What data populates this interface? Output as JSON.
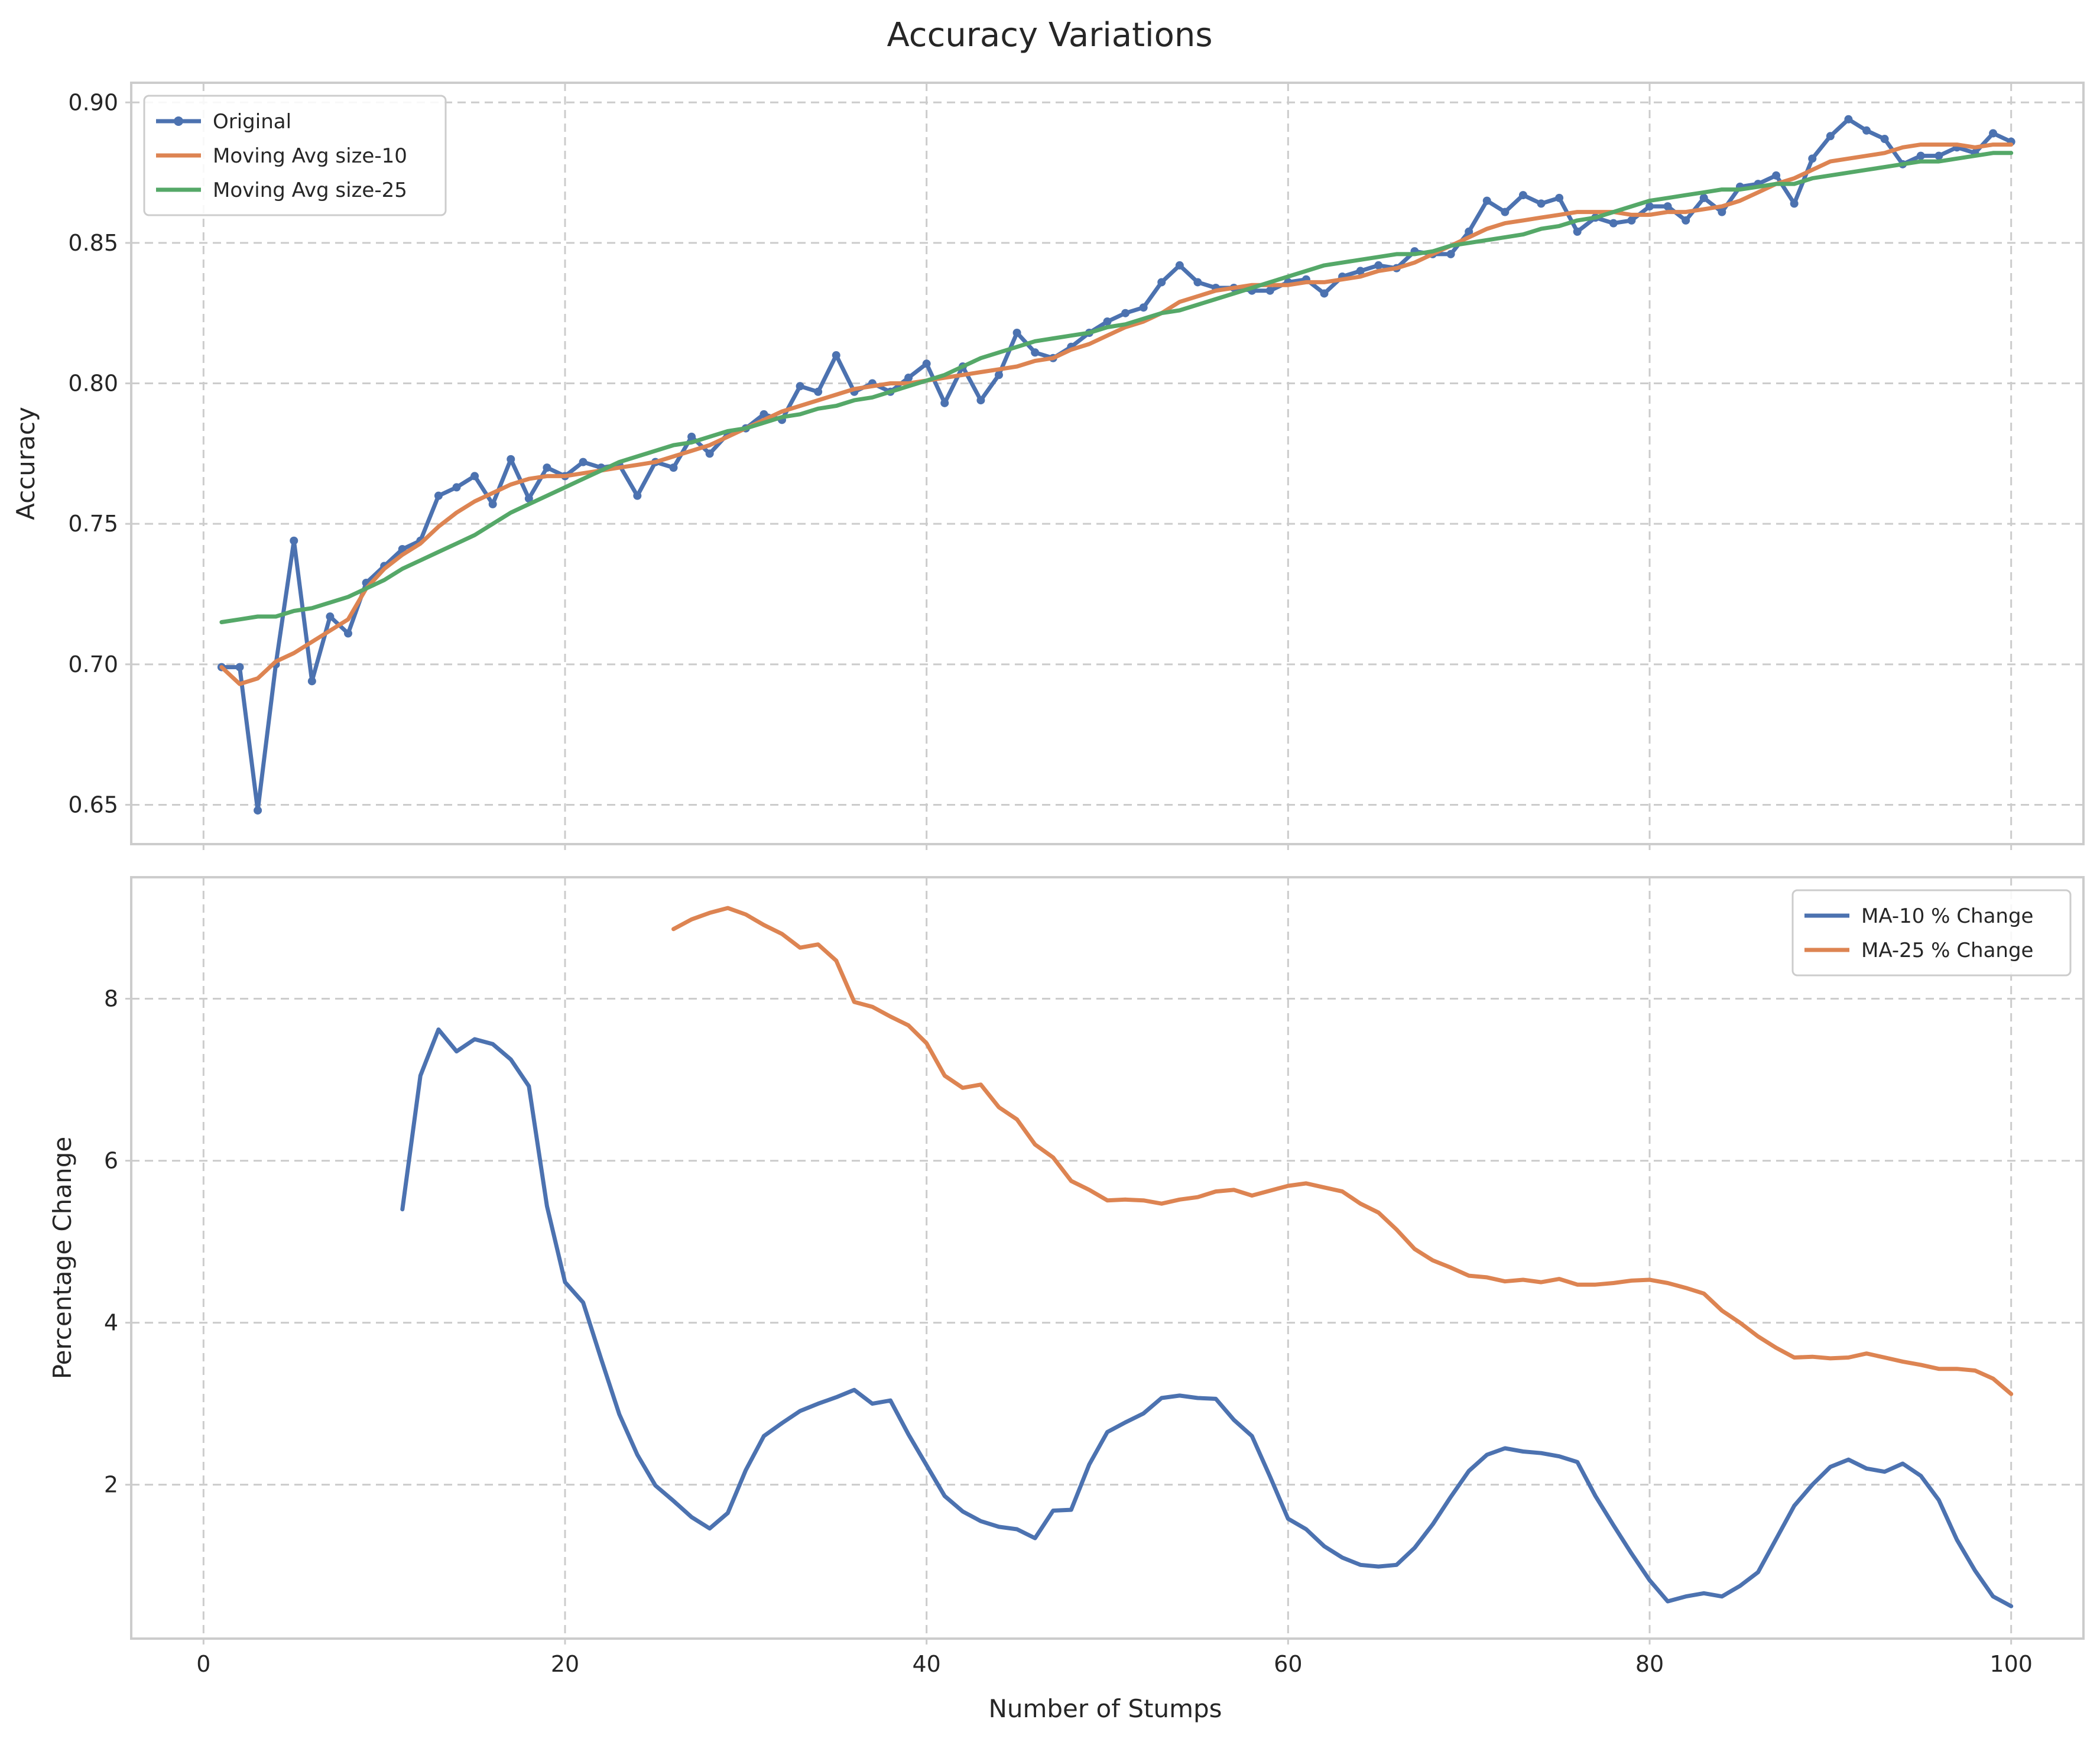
{
  "chart_data": {
    "type": "line",
    "title": "Accuracy Variations",
    "xlabel": "Number of Stumps",
    "colors": {
      "blue": "#4c72b0",
      "orange": "#dd8452",
      "green": "#55a868"
    },
    "subplots": [
      {
        "id": "top",
        "ylabel": "Accuracy",
        "xlim": [
          -4,
          104
        ],
        "ylim": [
          0.636,
          0.907
        ],
        "xticks": [
          0,
          20,
          40,
          60,
          80,
          100
        ],
        "xtick_labels": [
          "",
          "",
          "",
          "",
          "",
          ""
        ],
        "yticks": [
          0.65,
          0.7,
          0.75,
          0.8,
          0.85,
          0.9
        ],
        "ytick_labels": [
          "0.65",
          "0.70",
          "0.75",
          "0.80",
          "0.85",
          "0.90"
        ],
        "grid": true,
        "legend_position": "upper-left",
        "series": [
          {
            "name": "Original",
            "color": "#4c72b0",
            "marker": true,
            "x_start": 1,
            "values": [
              0.699,
              0.699,
              0.648,
              0.7,
              0.744,
              0.694,
              0.717,
              0.711,
              0.729,
              0.735,
              0.741,
              0.744,
              0.76,
              0.763,
              0.767,
              0.757,
              0.773,
              0.759,
              0.77,
              0.767,
              0.772,
              0.77,
              0.771,
              0.76,
              0.772,
              0.77,
              0.781,
              0.775,
              0.782,
              0.784,
              0.789,
              0.787,
              0.799,
              0.797,
              0.81,
              0.797,
              0.8,
              0.797,
              0.802,
              0.807,
              0.793,
              0.806,
              0.794,
              0.803,
              0.818,
              0.811,
              0.809,
              0.813,
              0.818,
              0.822,
              0.825,
              0.827,
              0.836,
              0.842,
              0.836,
              0.834,
              0.834,
              0.833,
              0.833,
              0.836,
              0.837,
              0.832,
              0.838,
              0.84,
              0.842,
              0.841,
              0.847,
              0.846,
              0.846,
              0.854,
              0.865,
              0.861,
              0.867,
              0.864,
              0.866,
              0.854,
              0.859,
              0.857,
              0.858,
              0.863,
              0.863,
              0.858,
              0.866,
              0.861,
              0.87,
              0.871,
              0.874,
              0.864,
              0.88,
              0.888,
              0.894,
              0.89,
              0.887,
              0.878,
              0.881,
              0.881,
              0.884,
              0.882,
              0.889,
              0.886
            ]
          },
          {
            "name": "Moving Avg size-10",
            "color": "#dd8452",
            "marker": false,
            "x_start": 1,
            "values": [
              0.699,
              0.693,
              0.695,
              0.701,
              0.704,
              0.708,
              0.712,
              0.716,
              0.727,
              0.734,
              0.739,
              0.743,
              0.749,
              0.754,
              0.758,
              0.761,
              0.764,
              0.766,
              0.767,
              0.767,
              0.768,
              0.769,
              0.77,
              0.771,
              0.772,
              0.774,
              0.776,
              0.778,
              0.781,
              0.784,
              0.787,
              0.79,
              0.792,
              0.794,
              0.796,
              0.798,
              0.799,
              0.8,
              0.8,
              0.801,
              0.802,
              0.803,
              0.804,
              0.805,
              0.806,
              0.808,
              0.809,
              0.812,
              0.814,
              0.817,
              0.82,
              0.822,
              0.825,
              0.829,
              0.831,
              0.833,
              0.834,
              0.835,
              0.835,
              0.835,
              0.836,
              0.836,
              0.837,
              0.838,
              0.84,
              0.841,
              0.843,
              0.846,
              0.849,
              0.852,
              0.855,
              0.857,
              0.858,
              0.859,
              0.86,
              0.861,
              0.861,
              0.861,
              0.86,
              0.86,
              0.861,
              0.861,
              0.862,
              0.863,
              0.865,
              0.868,
              0.871,
              0.873,
              0.876,
              0.879,
              0.88,
              0.881,
              0.882,
              0.884,
              0.885,
              0.885,
              0.885,
              0.884,
              0.885,
              0.885
            ]
          },
          {
            "name": "Moving Avg size-25",
            "color": "#55a868",
            "marker": false,
            "x_start": 1,
            "values": [
              0.715,
              0.716,
              0.717,
              0.717,
              0.719,
              0.72,
              0.722,
              0.724,
              0.727,
              0.73,
              0.734,
              0.737,
              0.74,
              0.743,
              0.746,
              0.75,
              0.754,
              0.757,
              0.76,
              0.763,
              0.766,
              0.769,
              0.772,
              0.774,
              0.776,
              0.778,
              0.779,
              0.781,
              0.783,
              0.784,
              0.786,
              0.788,
              0.789,
              0.791,
              0.792,
              0.794,
              0.795,
              0.797,
              0.799,
              0.801,
              0.803,
              0.806,
              0.809,
              0.811,
              0.813,
              0.815,
              0.816,
              0.817,
              0.818,
              0.82,
              0.821,
              0.823,
              0.825,
              0.826,
              0.828,
              0.83,
              0.832,
              0.834,
              0.836,
              0.838,
              0.84,
              0.842,
              0.843,
              0.844,
              0.845,
              0.846,
              0.846,
              0.847,
              0.849,
              0.85,
              0.851,
              0.852,
              0.853,
              0.855,
              0.856,
              0.858,
              0.859,
              0.861,
              0.863,
              0.865,
              0.866,
              0.867,
              0.868,
              0.869,
              0.869,
              0.87,
              0.871,
              0.871,
              0.873,
              0.874,
              0.875,
              0.876,
              0.877,
              0.878,
              0.879,
              0.879,
              0.88,
              0.881,
              0.882,
              0.882
            ]
          }
        ]
      },
      {
        "id": "bottom",
        "ylabel": "Percentage Change",
        "xlim": [
          -4,
          104
        ],
        "ylim": [
          0.1,
          9.5
        ],
        "xticks": [
          0,
          20,
          40,
          60,
          80,
          100
        ],
        "xtick_labels": [
          "0",
          "20",
          "40",
          "60",
          "80",
          "100"
        ],
        "yticks": [
          2,
          4,
          6,
          8
        ],
        "ytick_labels": [
          "2",
          "4",
          "6",
          "8"
        ],
        "grid": true,
        "legend_position": "upper-right",
        "series": [
          {
            "name": "MA-10 % Change",
            "color": "#4c72b0",
            "marker": false,
            "x_start": 11,
            "values": [
              5.4,
              7.05,
              7.62,
              7.35,
              7.5,
              7.44,
              7.25,
              6.92,
              5.44,
              4.5,
              4.25,
              3.55,
              2.87,
              2.37,
              1.99,
              1.8,
              1.6,
              1.46,
              1.65,
              2.18,
              2.6,
              2.76,
              2.91,
              3.0,
              3.08,
              3.17,
              3.0,
              3.04,
              2.62,
              2.24,
              1.86,
              1.67,
              1.55,
              1.48,
              1.45,
              1.34,
              1.68,
              1.69,
              2.25,
              2.65,
              2.77,
              2.88,
              3.07,
              3.1,
              3.07,
              3.06,
              2.8,
              2.6,
              2.1,
              1.58,
              1.45,
              1.24,
              1.1,
              1.01,
              0.99,
              1.01,
              1.22,
              1.51,
              1.85,
              2.17,
              2.37,
              2.45,
              2.41,
              2.39,
              2.35,
              2.28,
              1.86,
              1.5,
              1.15,
              0.82,
              0.56,
              0.62,
              0.66,
              0.62,
              0.75,
              0.92,
              1.33,
              1.74,
              2.0,
              2.22,
              2.31,
              2.2,
              2.16,
              2.26,
              2.11,
              1.81,
              1.32,
              0.94,
              0.62,
              0.5
            ]
          },
          {
            "name": "MA-25 % Change",
            "color": "#dd8452",
            "marker": false,
            "x_start": 26,
            "values": [
              8.86,
              8.98,
              9.06,
              9.12,
              9.04,
              8.91,
              8.8,
              8.63,
              8.67,
              8.47,
              7.96,
              7.9,
              7.78,
              7.67,
              7.45,
              7.05,
              6.9,
              6.94,
              6.66,
              6.51,
              6.2,
              6.04,
              5.75,
              5.64,
              5.51,
              5.52,
              5.51,
              5.47,
              5.52,
              5.55,
              5.62,
              5.64,
              5.57,
              5.63,
              5.69,
              5.72,
              5.67,
              5.62,
              5.47,
              5.36,
              5.15,
              4.91,
              4.77,
              4.68,
              4.58,
              4.56,
              4.51,
              4.53,
              4.5,
              4.54,
              4.47,
              4.47,
              4.49,
              4.52,
              4.53,
              4.49,
              4.43,
              4.36,
              4.15,
              4.0,
              3.83,
              3.69,
              3.57,
              3.58,
              3.56,
              3.57,
              3.62,
              3.57,
              3.52,
              3.48,
              3.43,
              3.43,
              3.41,
              3.31,
              3.12
            ]
          }
        ]
      }
    ]
  }
}
